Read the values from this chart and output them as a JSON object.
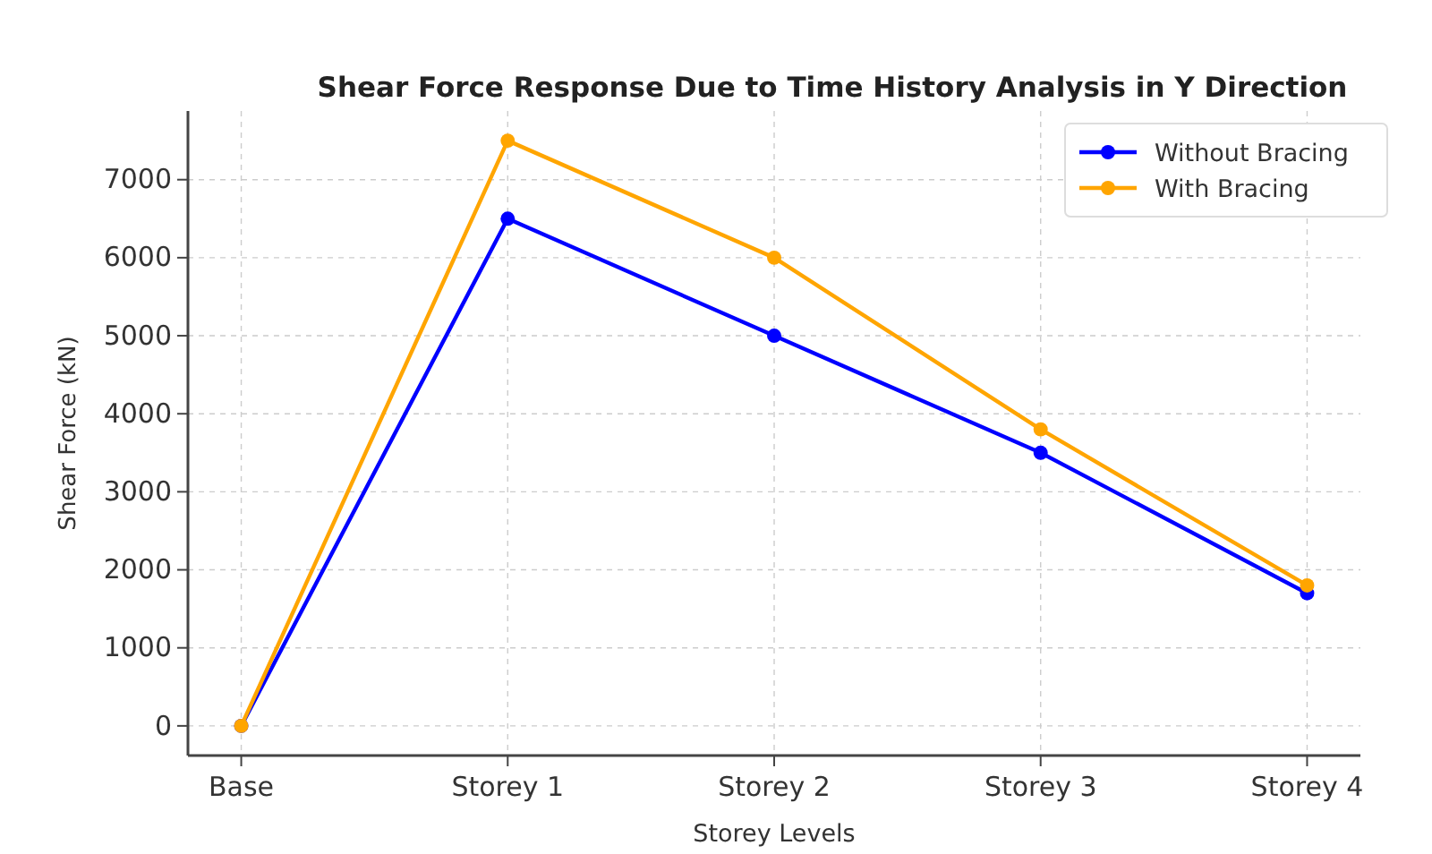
{
  "chart_data": {
    "type": "line",
    "title": "Shear Force Response Due to Time History Analysis in Y Direction",
    "xlabel": "Storey Levels",
    "ylabel": "Shear Force (kN)",
    "categories": [
      "Base",
      "Storey 1",
      "Storey 2",
      "Storey 3",
      "Storey 4"
    ],
    "series": [
      {
        "name": "Without Bracing",
        "color": "#0000ff",
        "values": [
          0,
          6500,
          5000,
          3500,
          1700
        ]
      },
      {
        "name": "With Bracing",
        "color": "#ffa500",
        "values": [
          0,
          7500,
          6000,
          3800,
          1800
        ]
      }
    ],
    "ylim": [
      -380,
      7880
    ],
    "yticks": [
      0,
      1000,
      2000,
      3000,
      4000,
      5000,
      6000,
      7000
    ],
    "grid": true,
    "legend": "top right",
    "marker": "circle",
    "line_style": "solid"
  }
}
